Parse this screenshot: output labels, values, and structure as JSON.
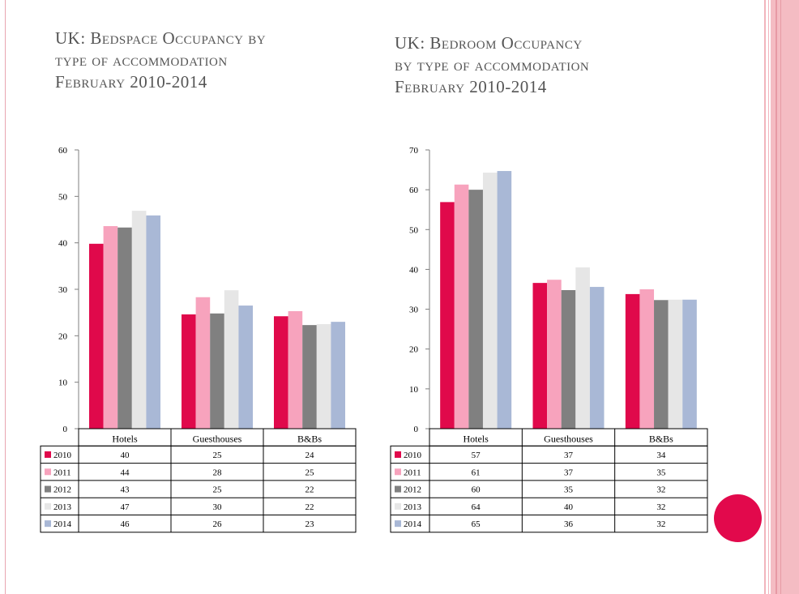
{
  "left_title": {
    "line1": "UK: Bedspace Occupancy by",
    "line2": "type of accommodation",
    "line3": "February 2010-2014"
  },
  "right_title": {
    "line1": "UK: Bedroom Occupancy",
    "line2": "by type of accommodation",
    "line3": "February 2010-2014"
  },
  "colors": {
    "2010": "#e0094b",
    "2011": "#f7a3bd",
    "2012": "#808080",
    "2013": "#e6e6e6",
    "2014": "#a9b8d6"
  },
  "chart_data": [
    {
      "type": "bar",
      "title": "UK: Bedspace Occupancy by type of accommodation February 2010-2014",
      "categories": [
        "Hotels",
        "Guesthouses",
        "B&Bs"
      ],
      "series": [
        {
          "name": "2010",
          "values": [
            40,
            25,
            24
          ],
          "bar_values": [
            39.8,
            24.6,
            24.2
          ]
        },
        {
          "name": "2011",
          "values": [
            44,
            28,
            25
          ],
          "bar_values": [
            43.6,
            28.3,
            25.3
          ]
        },
        {
          "name": "2012",
          "values": [
            43,
            25,
            22
          ],
          "bar_values": [
            43.3,
            24.8,
            22.3
          ]
        },
        {
          "name": "2013",
          "values": [
            47,
            30,
            22
          ],
          "bar_values": [
            46.9,
            29.8,
            22.5
          ]
        },
        {
          "name": "2014",
          "values": [
            46,
            26,
            23
          ],
          "bar_values": [
            45.9,
            26.5,
            23.0
          ]
        }
      ],
      "ylim": [
        0,
        60
      ],
      "yticks": [
        0,
        10,
        20,
        30,
        40,
        50,
        60
      ],
      "legend": "data-table"
    },
    {
      "type": "bar",
      "title": "UK: Bedroom Occupancy by type of accommodation February 2010-2014",
      "categories": [
        "Hotels",
        "Guesthouses",
        "B&Bs"
      ],
      "series": [
        {
          "name": "2010",
          "values": [
            57,
            37,
            34
          ],
          "bar_values": [
            56.9,
            36.6,
            33.8
          ]
        },
        {
          "name": "2011",
          "values": [
            61,
            37,
            35
          ],
          "bar_values": [
            61.3,
            37.4,
            35.0
          ]
        },
        {
          "name": "2012",
          "values": [
            60,
            35,
            32
          ],
          "bar_values": [
            60.0,
            34.8,
            32.3
          ]
        },
        {
          "name": "2013",
          "values": [
            64,
            40,
            32
          ],
          "bar_values": [
            64.3,
            40.5,
            32.4
          ]
        },
        {
          "name": "2014",
          "values": [
            65,
            36,
            32
          ],
          "bar_values": [
            64.7,
            35.6,
            32.4
          ]
        }
      ],
      "ylim": [
        0,
        70
      ],
      "yticks": [
        0,
        10,
        20,
        30,
        40,
        50,
        60,
        70
      ],
      "legend": "data-table"
    }
  ]
}
